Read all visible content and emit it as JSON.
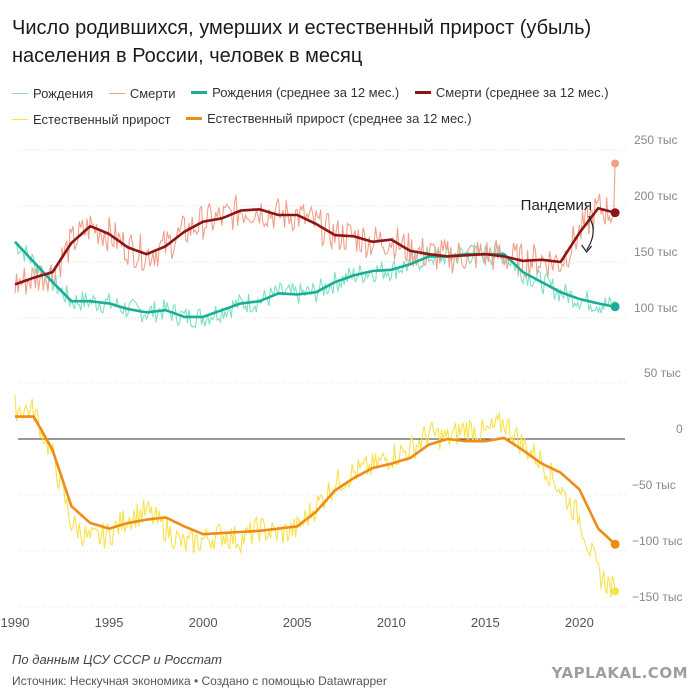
{
  "title": "Число родившихся, умерших и естественный прирост (убыль) населения в России, человек в месяц",
  "legend": [
    {
      "label": "Рождения",
      "color": "#7fe0c4",
      "style": "thin"
    },
    {
      "label": "Смерти",
      "color": "#f0a08a",
      "style": "thin"
    },
    {
      "label": "Рождения (среднее за 12 мес.)",
      "color": "#1aae96",
      "style": "thick"
    },
    {
      "label": "Смерти (среднее за 12 мес.)",
      "color": "#8e1515",
      "style": "thick"
    },
    {
      "label": "Естественный прирост",
      "color": "#f7e24a",
      "style": "thin"
    },
    {
      "label": "Естественный прирост (среднее за 12 мес.)",
      "color": "#ef8c16",
      "style": "thick"
    }
  ],
  "annotation": "Пандемия",
  "footer": {
    "note": "По данным ЦСУ СССР и Росстат",
    "source": "Источник: Нескучная экономика • Создано с помощью Datawrapper",
    "watermark": "YAPLAKAL.COM"
  },
  "chart_data": [
    {
      "type": "line",
      "title": "",
      "x_ticks": [
        1990,
        1995,
        2000,
        2005,
        2010,
        2015,
        2020
      ],
      "y_ticks": [
        100000,
        150000,
        200000,
        250000
      ],
      "y_tick_labels": [
        "100 тыс",
        "150 тыс",
        "200 тыс",
        "250 тыс"
      ],
      "xlim": [
        1990,
        2022
      ],
      "ylim": [
        85000,
        255000
      ],
      "x": [
        1990,
        1991,
        1992,
        1993,
        1994,
        1995,
        1996,
        1997,
        1998,
        1999,
        2000,
        2001,
        2002,
        2003,
        2004,
        2005,
        2006,
        2007,
        2008,
        2009,
        2010,
        2011,
        2012,
        2013,
        2014,
        2015,
        2016,
        2017,
        2018,
        2019,
        2020,
        2021,
        2021.9
      ],
      "series": [
        {
          "name": "Рождения (среднее за 12 мес.)",
          "color": "#1aae96",
          "values": [
            168000,
            150000,
            132000,
            115000,
            115000,
            113000,
            108000,
            105000,
            107000,
            101000,
            101000,
            107000,
            113000,
            115000,
            122000,
            121000,
            123000,
            132000,
            138000,
            142000,
            143000,
            148000,
            155000,
            155000,
            157000,
            157000,
            157000,
            141000,
            132000,
            123000,
            117000,
            113000,
            110000
          ]
        },
        {
          "name": "Смерти (среднее за 12 мес.)",
          "color": "#8e1515",
          "values": [
            130000,
            136000,
            141000,
            167000,
            182000,
            175000,
            163000,
            157000,
            164000,
            177000,
            186000,
            189000,
            196000,
            197000,
            192000,
            192000,
            184000,
            174000,
            173000,
            168000,
            170000,
            160000,
            157000,
            155000,
            156000,
            157000,
            155000,
            151000,
            152000,
            150000,
            176000,
            198000,
            194000
          ]
        }
      ],
      "raw_series": [
        {
          "name": "Рождения",
          "color": "#7fe0c4",
          "amplitude": 10000,
          "end_value": 111000
        },
        {
          "name": "Смерти",
          "color": "#f0a08a",
          "amplitude": 16000,
          "end_value": 238000
        }
      ],
      "annotation": {
        "text": "Пандемия",
        "x": 2020.6,
        "y": 190000
      }
    },
    {
      "type": "line",
      "title": "",
      "x_ticks": [
        1990,
        1995,
        2000,
        2005,
        2010,
        2015,
        2020
      ],
      "x_tick_labels": [
        "1990",
        "1995",
        "2000",
        "2005",
        "2010",
        "2015",
        "2020"
      ],
      "y_ticks": [
        50000,
        0,
        -50000,
        -100000,
        -150000
      ],
      "y_tick_labels": [
        "50 тыс",
        "0",
        "−50 тыс",
        "−100 тыс",
        "−150 тыс"
      ],
      "xlim": [
        1990,
        2022
      ],
      "ylim": [
        -160000,
        55000
      ],
      "x": [
        1990,
        1991,
        1992,
        1993,
        1994,
        1995,
        1996,
        1997,
        1998,
        1999,
        2000,
        2001,
        2002,
        2003,
        2004,
        2005,
        2006,
        2007,
        2008,
        2009,
        2010,
        2011,
        2012,
        2013,
        2014,
        2015,
        2016,
        2017,
        2018,
        2019,
        2020,
        2021,
        2021.9
      ],
      "series": [
        {
          "name": "Естественный прирост (среднее за 12 мес.)",
          "color": "#ef8c16",
          "values": [
            20000,
            20000,
            -10000,
            -60000,
            -75000,
            -80000,
            -75000,
            -72000,
            -70000,
            -78000,
            -85000,
            -84000,
            -83000,
            -82000,
            -80000,
            -78000,
            -65000,
            -46000,
            -35000,
            -26000,
            -22000,
            -17000,
            -5000,
            0,
            -2000,
            -2000,
            1000,
            -10000,
            -22000,
            -30000,
            -45000,
            -80000,
            -94000
          ]
        },
        {
          "name": "Естественный прирост",
          "color": "#f7e24a",
          "values": [
            28000,
            25000,
            -15000,
            -75000,
            -90000,
            -85000,
            -70000,
            -65000,
            -80000,
            -95000,
            -90000,
            -85000,
            -90000,
            -80000,
            -85000,
            -80000,
            -60000,
            -40000,
            -30000,
            -25000,
            -15000,
            -10000,
            5000,
            0,
            10000,
            5000,
            15000,
            -5000,
            -20000,
            -45000,
            -70000,
            -120000,
            -136000
          ]
        }
      ]
    }
  ]
}
